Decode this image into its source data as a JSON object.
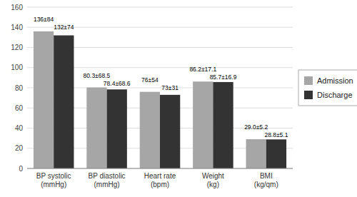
{
  "chart_data": {
    "type": "bar",
    "categories": [
      "BP systolic\n(mmHg)",
      "BP diastolic\n(mmHg)",
      "Heart rate\n(bpm)",
      "Weight\n(kg)",
      "BMI\n(kg/qm)"
    ],
    "series": [
      {
        "name": "Admission",
        "color": "#a6a6a6",
        "values": [
          136,
          80.3,
          76,
          86.2,
          29.0
        ],
        "value_labels": [
          "136±84",
          "80.3±68.5",
          "76±54",
          "86.2±17.1",
          "29.0±5.2"
        ]
      },
      {
        "name": "Discharge",
        "color": "#333333",
        "values": [
          132,
          78.4,
          73,
          85.7,
          28.8
        ],
        "value_labels": [
          "132±74",
          "78.4±68.6",
          "73±31",
          "85.7±16.9",
          "28.8±5.1"
        ]
      }
    ],
    "ylim": [
      0,
      160
    ],
    "yticks": [
      0,
      20,
      40,
      60,
      80,
      100,
      120,
      140,
      160
    ],
    "grid": true,
    "legend": "right",
    "data_labels": true
  }
}
